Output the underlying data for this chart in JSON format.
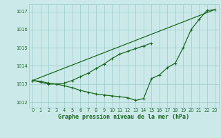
{
  "title": "Graphe pression niveau de la mer (hPa)",
  "bg_color": "#cce9e9",
  "grid_color": "#99cccc",
  "line_color": "#1a6620",
  "xlim": [
    -0.5,
    23.5
  ],
  "ylim": [
    1011.7,
    1017.4
  ],
  "yticks": [
    1012,
    1013,
    1014,
    1015,
    1016,
    1017
  ],
  "xticks": [
    0,
    1,
    2,
    3,
    4,
    5,
    6,
    7,
    8,
    9,
    10,
    11,
    12,
    13,
    14,
    15,
    16,
    17,
    18,
    19,
    20,
    21,
    22,
    23
  ],
  "line1_x": [
    0,
    1,
    2,
    3,
    4,
    5,
    6,
    7,
    8,
    9,
    10,
    11,
    12,
    13,
    14,
    15,
    16,
    17,
    18,
    19,
    20,
    21,
    22,
    23
  ],
  "line1_y": [
    1013.2,
    1013.1,
    1013.0,
    1013.0,
    1012.9,
    1012.8,
    1012.65,
    1012.55,
    1012.45,
    1012.4,
    1012.35,
    1012.3,
    1012.25,
    1012.1,
    1012.2,
    1013.3,
    1013.5,
    1013.9,
    1014.15,
    1015.0,
    1016.0,
    1016.55,
    1017.05,
    1017.1
  ],
  "line2_x": [
    0,
    1,
    2,
    3,
    4,
    5,
    6,
    7,
    8,
    9,
    10,
    11,
    12,
    13,
    14,
    15,
    16,
    17,
    18,
    19,
    20,
    21,
    22,
    23
  ],
  "line2_y": [
    1013.2,
    1013.15,
    1013.05,
    1013.0,
    1013.05,
    1013.2,
    1013.4,
    1013.6,
    1013.85,
    1014.1,
    1014.4,
    1014.65,
    1014.8,
    1014.95,
    1015.1,
    1015.25,
    null,
    null,
    null,
    null,
    null,
    null,
    null,
    null
  ],
  "line3_x": [
    0,
    23
  ],
  "line3_y": [
    1013.2,
    1017.1
  ]
}
